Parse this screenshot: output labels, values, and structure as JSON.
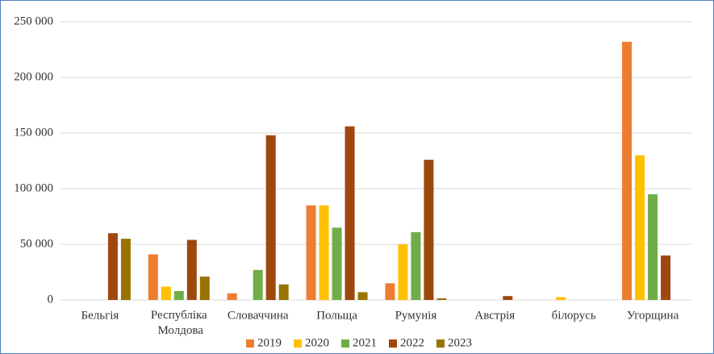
{
  "chart_data": {
    "type": "bar",
    "categories": [
      "Бельгія",
      "Республіка Молдова",
      "Словаччина",
      "Польща",
      "Румунія",
      "Австрія",
      "білорусь",
      "Угорщина"
    ],
    "series": [
      {
        "name": "2019",
        "color": "#ed7d31",
        "values": [
          0,
          41000,
          6000,
          85000,
          15000,
          0,
          0,
          232000
        ]
      },
      {
        "name": "2020",
        "color": "#ffc000",
        "values": [
          0,
          12000,
          0,
          85000,
          50000,
          0,
          2500,
          130000
        ]
      },
      {
        "name": "2021",
        "color": "#70ad47",
        "values": [
          0,
          8000,
          27000,
          65000,
          61000,
          0,
          0,
          95000
        ]
      },
      {
        "name": "2022",
        "color": "#9e480e",
        "values": [
          60000,
          54000,
          148000,
          156000,
          126000,
          3500,
          0,
          40000
        ]
      },
      {
        "name": "2023",
        "color": "#997300",
        "values": [
          55000,
          21000,
          14000,
          7000,
          1500,
          0,
          0,
          0
        ]
      }
    ],
    "ylim": [
      0,
      250000
    ],
    "yticks": [
      0,
      {
        "value": 50000,
        "label": "50 000"
      },
      {
        "value": 100000,
        "label": "100 000"
      },
      {
        "value": 150000,
        "label": "150 000"
      },
      {
        "value": 200000,
        "label": "200 000"
      },
      {
        "value": 250000,
        "label": "250 000"
      }
    ],
    "grid": true,
    "legend": "bottom"
  }
}
